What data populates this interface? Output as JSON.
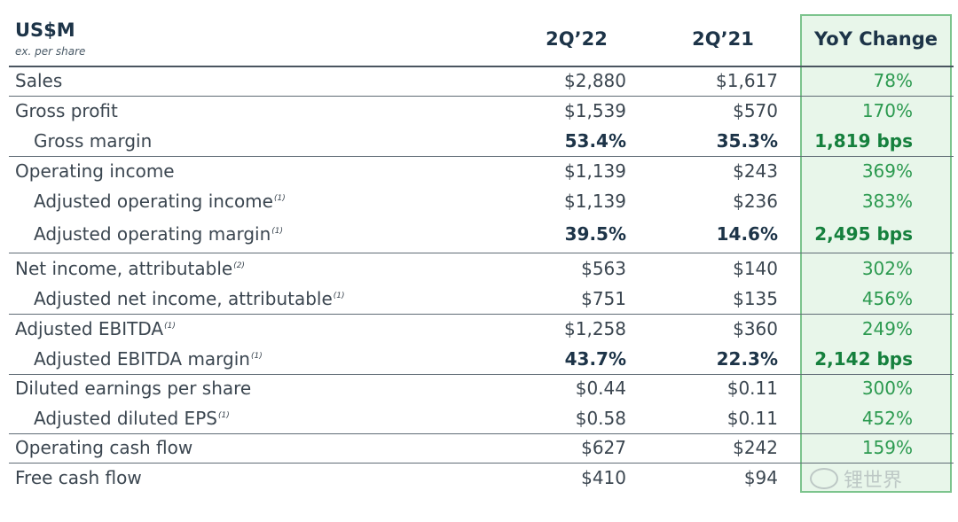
{
  "header": {
    "unit": "US$M",
    "unit_note": "ex. per share",
    "col1": "2Q’22",
    "col2": "2Q’21",
    "col3": "YoY Change"
  },
  "rows": [
    {
      "label": "Sales",
      "fn": "",
      "v1": "$2,880",
      "v2": "$1,617",
      "v3": "78%"
    },
    {
      "label": "Gross profit",
      "fn": "",
      "v1": "$1,539",
      "v2": "$570",
      "v3": "170%"
    },
    {
      "label": "Gross margin",
      "fn": "",
      "v1": "53.4%",
      "v2": "35.3%",
      "v3": "1,819 bps"
    },
    {
      "label": "Operating income",
      "fn": "",
      "v1": "$1,139",
      "v2": "$243",
      "v3": "369%"
    },
    {
      "label": "Adjusted operating income",
      "fn": "(1)",
      "v1": "$1,139",
      "v2": "$236",
      "v3": "383%"
    },
    {
      "label": "Adjusted operating margin",
      "fn": "(1)",
      "v1": "39.5%",
      "v2": "14.6%",
      "v3": "2,495 bps"
    },
    {
      "label": "Net income, attributable",
      "fn": "(2)",
      "v1": "$563",
      "v2": "$140",
      "v3": "302%"
    },
    {
      "label": "Adjusted net income, attributable",
      "fn": "(1)",
      "v1": "$751",
      "v2": "$135",
      "v3": "456%"
    },
    {
      "label": "Adjusted EBITDA",
      "fn": "(1)",
      "v1": "$1,258",
      "v2": "$360",
      "v3": "249%"
    },
    {
      "label": "Adjusted EBITDA margin",
      "fn": "(1)",
      "v1": "43.7%",
      "v2": "22.3%",
      "v3": "2,142 bps"
    },
    {
      "label": "Diluted earnings per share",
      "fn": "",
      "v1": "$0.44",
      "v2": "$0.11",
      "v3": "300%"
    },
    {
      "label": "Adjusted diluted EPS",
      "fn": "(1)",
      "v1": "$0.58",
      "v2": "$0.11",
      "v3": "452%"
    },
    {
      "label": "Operating cash flow",
      "fn": "",
      "v1": "$627",
      "v2": "$242",
      "v3": "159%"
    },
    {
      "label": "Free cash flow",
      "fn": "",
      "v1": "$410",
      "v2": "$94",
      "v3": ""
    }
  ],
  "watermark": "锂世界",
  "colors": {
    "header_text": "#1d3448",
    "body_text": "#3b4650",
    "yoy_text": "#2c9a50",
    "yoy_band": "#e8f6ea",
    "yoy_border": "#7cc48d"
  }
}
